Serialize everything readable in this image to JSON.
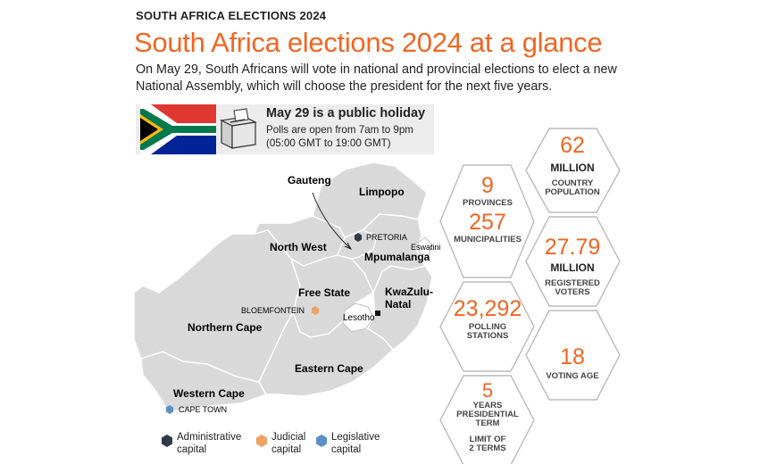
{
  "header": {
    "kicker": "SOUTH AFRICA ELECTIONS 2024",
    "title": "South Africa elections 2024 at a glance",
    "subtitle": "On May 29, South Africans will vote in national and provincial elections to elect a new National Assembly, which will choose the president for the next five years."
  },
  "holiday": {
    "title": "May 29 is a public holiday",
    "line1": "Polls are open from 7am to 9pm",
    "line2": "(05:00 GMT to 19:00 GMT)"
  },
  "flag_colors": {
    "red": "#de3831",
    "blue": "#002395",
    "green": "#007a4d",
    "black": "#000000",
    "yellow": "#ffb612",
    "white": "#ffffff"
  },
  "map": {
    "provinces": {
      "gauteng": "Gauteng",
      "limpopo": "Limpopo",
      "north_west": "North West",
      "mpumalanga": "Mpumalanga",
      "free_state": "Free State",
      "kzn_1": "KwaZulu-",
      "kzn_2": "Natal",
      "northern_cape": "Northern Cape",
      "eastern_cape": "Eastern Cape",
      "western_cape": "Western Cape"
    },
    "neighbours": {
      "eswatini": "Eswatini",
      "lesotho": "Lesotho"
    },
    "cities": {
      "pretoria": "PRETORIA",
      "bloemfontein": "BLOEMFONTEIN",
      "cape_town": "CAPE TOWN"
    }
  },
  "legend": {
    "administrative_1": "Administrative",
    "administrative_2": "capital",
    "judicial_1": "Judicial",
    "judicial_2": "capital",
    "legislative_1": "Legislative",
    "legislative_2": "capital",
    "colors": {
      "administrative": "#2e3a4a",
      "judicial": "#f0a060",
      "legislative": "#5b8fc7"
    }
  },
  "stats": {
    "population": {
      "value": "62",
      "unit": "MILLION",
      "label_1": "COUNTRY",
      "label_2": "POPULATION"
    },
    "provinces": {
      "value": "9",
      "label": "PROVINCES"
    },
    "municipalities": {
      "value": "257",
      "label": "MUNICIPALITIES"
    },
    "registered": {
      "value": "27.79",
      "unit": "MILLION",
      "label_1": "REGISTERED",
      "label_2": "VOTERS"
    },
    "polling": {
      "value": "23,292",
      "label_1": "POLLING",
      "label_2": "STATIONS"
    },
    "voting_age": {
      "value": "18",
      "label": "VOTING AGE"
    },
    "term": {
      "value": "5",
      "label_1": "YEARS",
      "label_2": "PRESIDENTIAL",
      "label_3": "TERM",
      "limit_1": "LIMIT OF",
      "limit_2": "2 TERMS"
    }
  },
  "accent_color": "#f26522"
}
